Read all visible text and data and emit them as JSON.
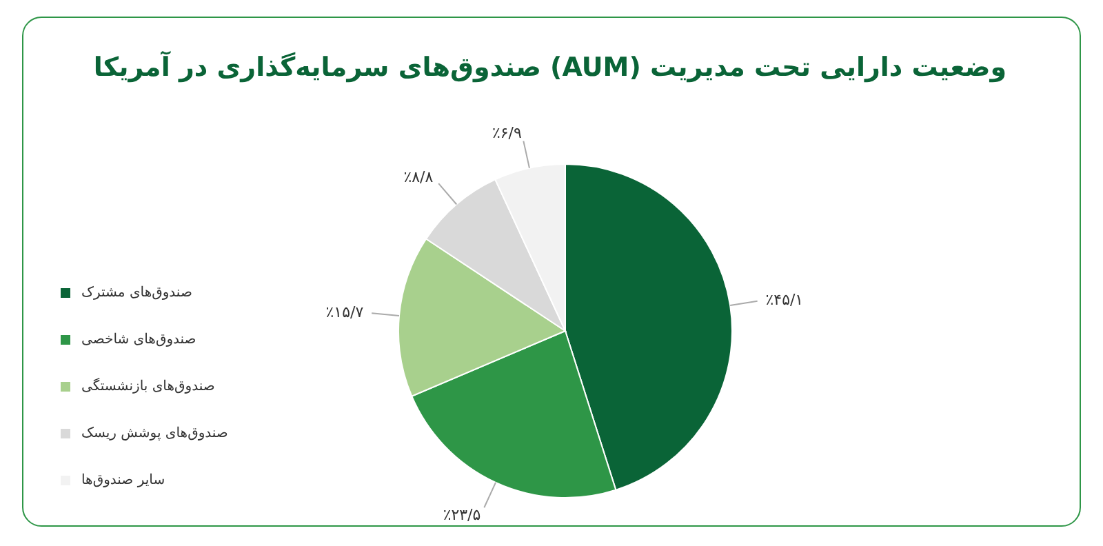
{
  "chart_data": {
    "type": "pie",
    "title": "وضعیت دارایی تحت مدیریت (AUM) صندوق‌های سرمایه‌گذاری در آمریکا",
    "categories": [
      "صندوق‌های مشترک",
      "صندوق‌های شاخصی",
      "صندوق‌های بازنشستگی",
      "صندوق‌های پوشش ریسک",
      "سایر صندوق‌ها"
    ],
    "values": [
      45.1,
      23.5,
      15.7,
      8.8,
      6.9
    ],
    "colors": [
      "#0a6437",
      "#2e9647",
      "#a8d08d",
      "#d9d9d9",
      "#f2f2f2"
    ],
    "value_labels": [
      "٪۴۵/۱",
      "٪۲۳/۵",
      "٪۱۵/۷",
      "٪۸/۸",
      "٪۶/۹"
    ],
    "legend": "left"
  }
}
